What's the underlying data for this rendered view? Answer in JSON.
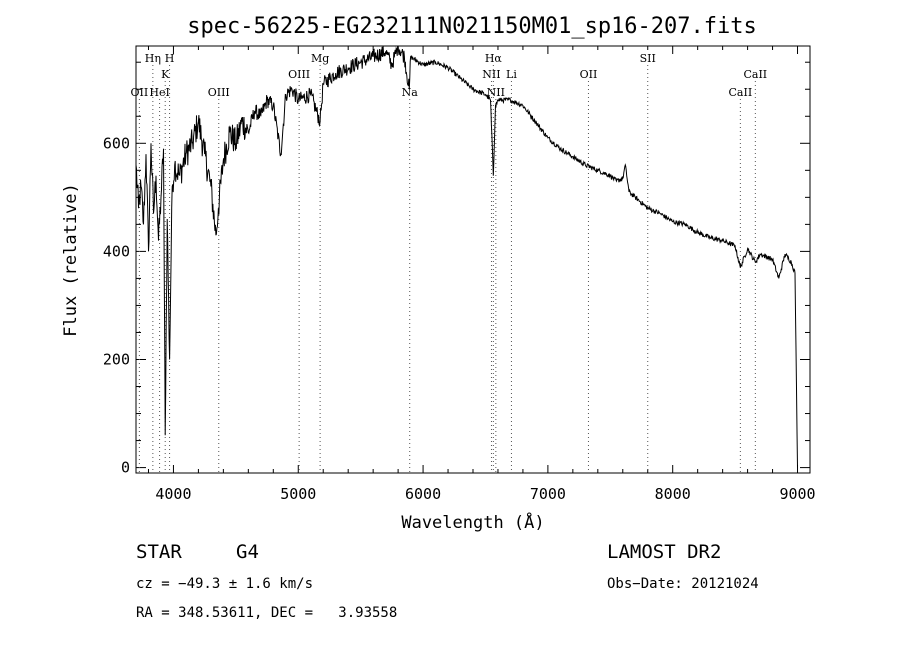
{
  "chart_data": {
    "type": "line",
    "title": "spec-56225-EG232111N021150M01_sp16-207.fits",
    "xlabel": "Wavelength (Å)",
    "ylabel": "Flux (relative)",
    "xlim": [
      3700,
      9100
    ],
    "ylim": [
      -10,
      780
    ],
    "x_ticks": [
      4000,
      5000,
      6000,
      7000,
      8000,
      9000
    ],
    "y_ticks": [
      0,
      200,
      400,
      600
    ],
    "grid": false,
    "series": [
      {
        "x": [
          3700,
          3720,
          3740,
          3760,
          3780,
          3800,
          3820,
          3840,
          3860,
          3880,
          3900,
          3920,
          3934,
          3950,
          3969,
          3990,
          4010,
          4050,
          4100,
          4150,
          4200,
          4250,
          4300,
          4340,
          4360,
          4400,
          4450,
          4500,
          4550,
          4600,
          4650,
          4700,
          4750,
          4800,
          4860,
          4900,
          4950,
          5000,
          5100,
          5175,
          5200,
          5300,
          5400,
          5500,
          5600,
          5700,
          5750,
          5800,
          5850,
          5890,
          5900,
          6000,
          6100,
          6200,
          6300,
          6400,
          6500,
          6540,
          6563,
          6580,
          6600,
          6700,
          6800,
          6900,
          7000,
          7100,
          7200,
          7300,
          7400,
          7500,
          7550,
          7600,
          7620,
          7650,
          7700,
          7800,
          7900,
          8000,
          8100,
          8200,
          8300,
          8400,
          8500,
          8542,
          8600,
          8662,
          8700,
          8800,
          8850,
          8900,
          8950,
          8980,
          9000
        ],
        "y": [
          560,
          480,
          520,
          450,
          580,
          400,
          600,
          470,
          540,
          420,
          500,
          590,
          60,
          460,
          200,
          520,
          560,
          540,
          580,
          600,
          640,
          580,
          520,
          430,
          480,
          570,
          620,
          600,
          640,
          620,
          660,
          650,
          680,
          670,
          580,
          690,
          700,
          680,
          690,
          640,
          710,
          730,
          740,
          750,
          760,
          770,
          745,
          780,
          760,
          700,
          760,
          745,
          750,
          740,
          720,
          700,
          690,
          680,
          540,
          670,
          680,
          680,
          670,
          640,
          610,
          590,
          575,
          560,
          550,
          540,
          530,
          535,
          560,
          510,
          500,
          480,
          470,
          455,
          450,
          435,
          425,
          420,
          410,
          370,
          405,
          380,
          395,
          385,
          350,
          395,
          380,
          360,
          0
        ]
      }
    ],
    "line_markers": [
      {
        "label": "OII",
        "x": 3727,
        "row": 3
      },
      {
        "label": "Hη",
        "x": 3835,
        "row": 1
      },
      {
        "label": "HeI",
        "x": 3889,
        "row": 3
      },
      {
        "label": "K",
        "x": 3934,
        "row": 2
      },
      {
        "label": "H",
        "x": 3969,
        "row": 1
      },
      {
        "label": "OIII",
        "x": 4363,
        "row": 3
      },
      {
        "label": "OIII",
        "x": 5007,
        "row": 2
      },
      {
        "label": "Mg",
        "x": 5175,
        "row": 1
      },
      {
        "label": "Na",
        "x": 5893,
        "row": 3
      },
      {
        "label": "Hα",
        "x": 6563,
        "row": 1
      },
      {
        "label": "NII",
        "x": 6548,
        "row": 2
      },
      {
        "label": "NII",
        "x": 6583,
        "row": 3
      },
      {
        "label": "Li",
        "x": 6708,
        "row": 2
      },
      {
        "label": "OII",
        "x": 7325,
        "row": 2
      },
      {
        "label": "SII",
        "x": 7800,
        "row": 1
      },
      {
        "label": "CaII",
        "x": 8542,
        "row": 3
      },
      {
        "label": "CaII",
        "x": 8662,
        "row": 2
      }
    ]
  },
  "footer": {
    "class_label": "STAR",
    "subclass_label": "G4",
    "survey_label": "LAMOST DR2",
    "cz_text": "cz = −49.3 ± 1.6 km/s",
    "obs_date_text": "Obs−Date: 20121024",
    "coords_text": "RA = 348.53611, DEC =   3.93558"
  }
}
